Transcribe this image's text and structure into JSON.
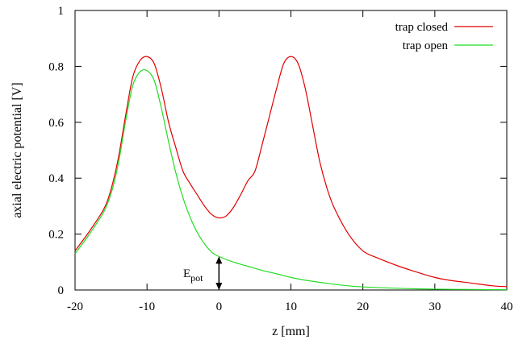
{
  "chart_data": {
    "type": "line",
    "title": "",
    "xlabel": "z [mm]",
    "ylabel": "axial electric potential [V]",
    "xlim": [
      -20,
      40
    ],
    "ylim": [
      0,
      1
    ],
    "xticks": [
      -20,
      -10,
      0,
      10,
      20,
      30,
      40
    ],
    "yticks": [
      0,
      0.2,
      0.4,
      0.6,
      0.8,
      1
    ],
    "xtick_labels": [
      "-20",
      "-10",
      "0",
      "10",
      "20",
      "30",
      "40"
    ],
    "ytick_labels": [
      "0",
      "0.2",
      "0.4",
      "0.6",
      "0.8",
      "1"
    ],
    "grid": false,
    "legend_position": "top-right",
    "series": [
      {
        "name": "trap closed",
        "color": "#e00000",
        "x": [
          -20,
          -18,
          -16,
          -15,
          -14,
          -13,
          -12,
          -11,
          -10,
          -9,
          -8,
          -7,
          -6,
          -5,
          -4,
          -3,
          -2,
          -1,
          0,
          1,
          2,
          3,
          4,
          5,
          6,
          7,
          8,
          9,
          10,
          11,
          12,
          13,
          14,
          15,
          16,
          18,
          20,
          22,
          25,
          28,
          30,
          32,
          35,
          38,
          40
        ],
        "y": [
          0.14,
          0.21,
          0.29,
          0.36,
          0.47,
          0.62,
          0.76,
          0.82,
          0.835,
          0.81,
          0.72,
          0.6,
          0.51,
          0.425,
          0.38,
          0.34,
          0.3,
          0.27,
          0.258,
          0.265,
          0.295,
          0.34,
          0.39,
          0.425,
          0.52,
          0.62,
          0.72,
          0.81,
          0.835,
          0.81,
          0.72,
          0.59,
          0.46,
          0.365,
          0.295,
          0.2,
          0.14,
          0.115,
          0.085,
          0.06,
          0.045,
          0.035,
          0.025,
          0.015,
          0.012
        ]
      },
      {
        "name": "trap open",
        "color": "#22dd22",
        "x": [
          -20,
          -18,
          -16,
          -15,
          -14,
          -13,
          -12,
          -11,
          -10,
          -9,
          -8,
          -7,
          -6,
          -5,
          -4,
          -3,
          -2,
          -1,
          0,
          2,
          4,
          6,
          8,
          10,
          12,
          15,
          18,
          20,
          25,
          30,
          35,
          40
        ],
        "y": [
          0.13,
          0.2,
          0.28,
          0.345,
          0.45,
          0.6,
          0.73,
          0.78,
          0.785,
          0.75,
          0.65,
          0.53,
          0.42,
          0.33,
          0.26,
          0.205,
          0.165,
          0.135,
          0.12,
          0.1,
          0.085,
          0.07,
          0.058,
          0.045,
          0.035,
          0.024,
          0.015,
          0.011,
          0.006,
          0.003,
          0.002,
          0.001
        ]
      }
    ],
    "annotation": {
      "label": "E",
      "subscript": "pot",
      "x": 0,
      "y_from": 0,
      "y_to": 0.12
    }
  }
}
